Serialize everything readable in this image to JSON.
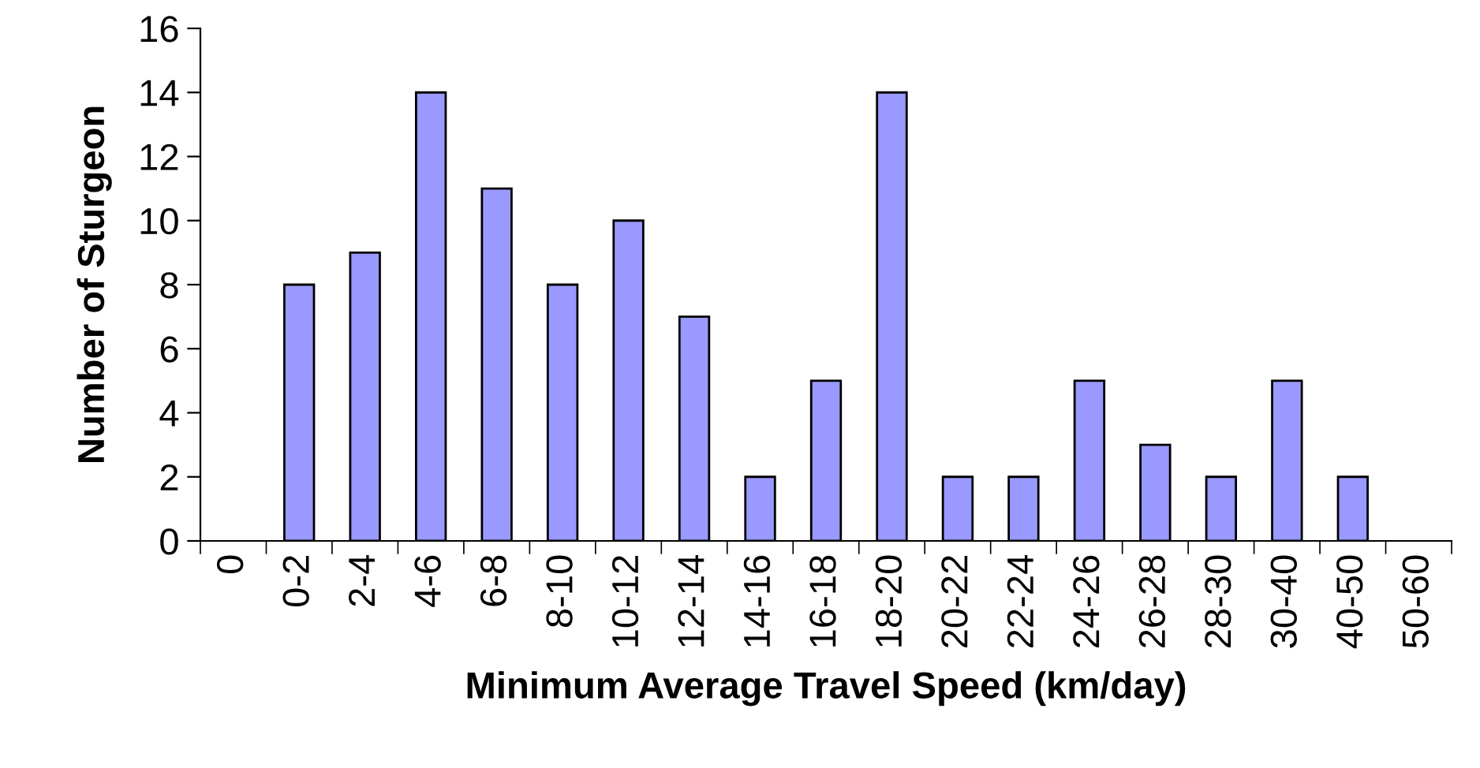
{
  "chart_data": {
    "type": "bar",
    "xlabel": "Minimum Average Travel Speed (km/day)",
    "ylabel": "Number of Sturgeon",
    "categories": [
      "0",
      "0-2",
      "2-4",
      "4-6",
      "6-8",
      "8-10",
      "10-12",
      "12-14",
      "14-16",
      "16-18",
      "18-20",
      "20-22",
      "22-24",
      "24-26",
      "26-28",
      "28-30",
      "30-40",
      "40-50",
      "50-60"
    ],
    "values": [
      0,
      8,
      9,
      14,
      11,
      8,
      10,
      7,
      2,
      5,
      14,
      2,
      2,
      5,
      3,
      2,
      5,
      2,
      0
    ],
    "color": "#9999ff",
    "ylim": [
      0,
      16
    ],
    "yticks": [
      0,
      2,
      4,
      6,
      8,
      10,
      12,
      14,
      16
    ],
    "grid": false,
    "legend": false
  }
}
